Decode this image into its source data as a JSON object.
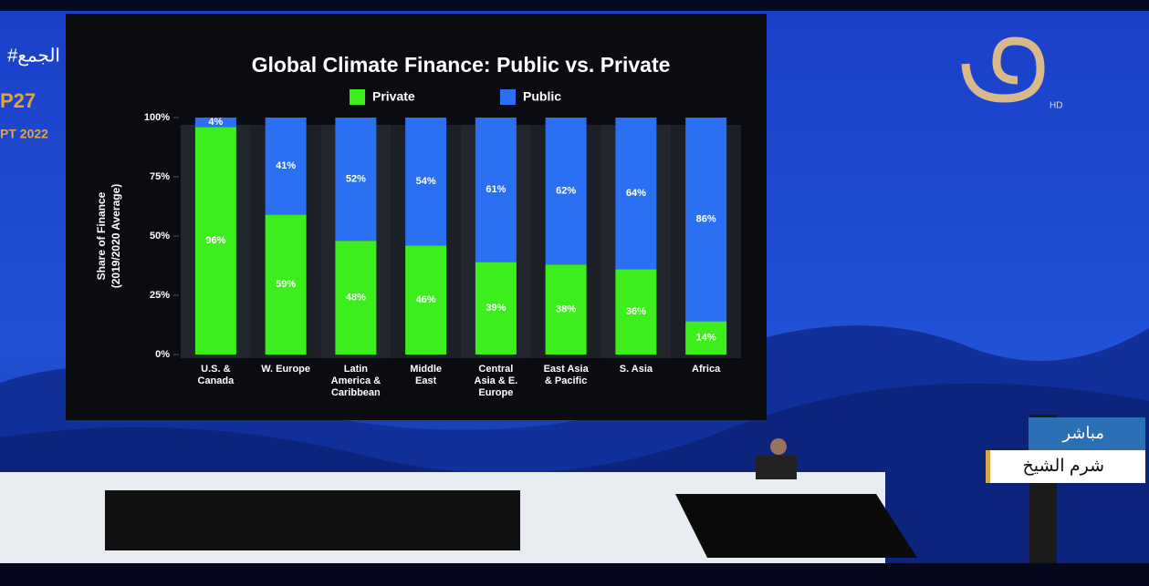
{
  "chart_data": {
    "type": "stacked-bar",
    "title": "Global Climate Finance: Public vs. Private",
    "ylabel": [
      "Share of Finance",
      "(2019/2020 Average)"
    ],
    "categories": [
      "U.S. & Canada",
      "W. Europe",
      "Latin America & Caribbean",
      "Middle East",
      "Central Asia & E. Europe",
      "East Asia & Pacific",
      "S. Asia",
      "Africa"
    ],
    "series": [
      {
        "name": "Private",
        "color": "#3cee1c",
        "values": [
          96,
          59,
          48,
          46,
          39,
          38,
          36,
          14
        ],
        "value_labels": [
          "96%",
          "59%",
          "48%",
          "46%",
          "39%",
          "38%",
          "36%",
          "14%"
        ]
      },
      {
        "name": "Public",
        "color": "#2b6ff2",
        "values": [
          4,
          41,
          52,
          54,
          61,
          62,
          64,
          86
        ],
        "value_labels": [
          "4%",
          "41%",
          "52%",
          "54%",
          "61%",
          "62%",
          "64%",
          "86%"
        ]
      }
    ],
    "ylim": [
      0,
      100
    ],
    "yticks": [
      {
        "value": 0,
        "label": "0%"
      },
      {
        "value": 25,
        "label": "25%"
      },
      {
        "value": 50,
        "label": "50%"
      },
      {
        "value": 75,
        "label": "75%"
      },
      {
        "value": 100,
        "label": "100%"
      }
    ]
  },
  "overlay": {
    "hashtag": "#الجمع",
    "event": "P27",
    "date": "PT 2022",
    "hd": "HD",
    "live": "مباشر",
    "location": "شرم الشيخ"
  }
}
